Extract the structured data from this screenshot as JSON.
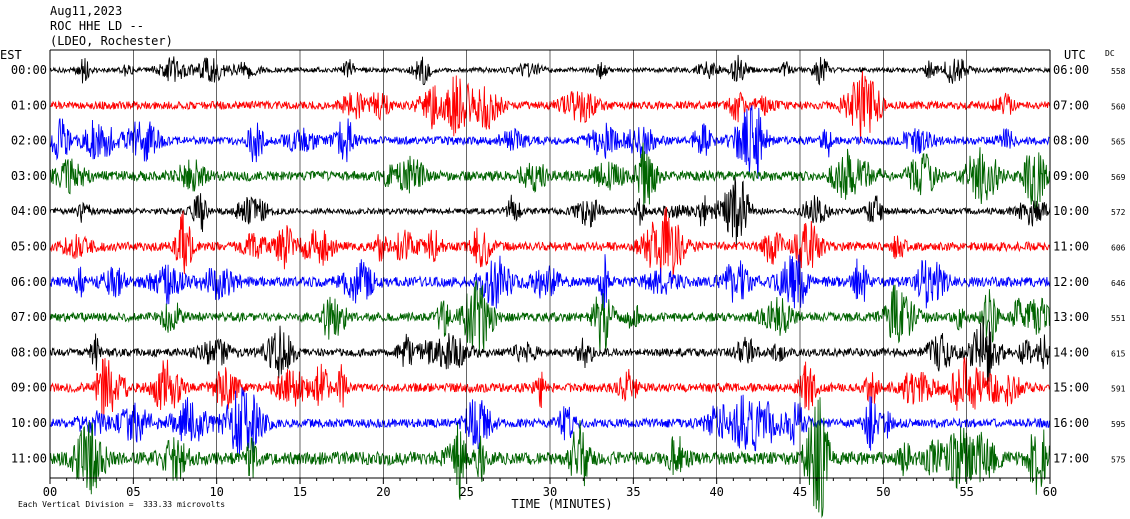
{
  "header": {
    "date": "Aug11,2023",
    "station": "ROC HHE LD --",
    "network": "(LDEO, Rochester)"
  },
  "footer": {
    "scale_text": "Each Vertical Division =  333.33 microvolts"
  },
  "chart_data": {
    "type": "line",
    "title": "",
    "xlabel": "TIME (MINUTES)",
    "ylabel_left": "EST",
    "ylabel_right": "UTC",
    "dc_label": "DC",
    "xlim": [
      0,
      60
    ],
    "x_ticks": [
      0,
      5,
      10,
      15,
      20,
      25,
      30,
      35,
      40,
      45,
      50,
      55,
      60
    ],
    "x_tick_labels": [
      "00",
      "05",
      "10",
      "15",
      "20",
      "25",
      "30",
      "35",
      "40",
      "45",
      "50",
      "55",
      "60"
    ],
    "colors": [
      "#000000",
      "#ff0000",
      "#0000ff",
      "#006400"
    ],
    "traces": [
      {
        "est": "00:00",
        "utc": "06:00",
        "dc": "558",
        "color": "#000000",
        "amplitude_divisions": 0.5
      },
      {
        "est": "01:00",
        "utc": "07:00",
        "dc": "560",
        "color": "#ff0000",
        "amplitude_divisions": 0.8
      },
      {
        "est": "02:00",
        "utc": "08:00",
        "dc": "565",
        "color": "#0000ff",
        "amplitude_divisions": 0.8
      },
      {
        "est": "03:00",
        "utc": "09:00",
        "dc": "569",
        "color": "#006400",
        "amplitude_divisions": 1.0
      },
      {
        "est": "04:00",
        "utc": "10:00",
        "dc": "572",
        "color": "#000000",
        "amplitude_divisions": 0.6
      },
      {
        "est": "05:00",
        "utc": "11:00",
        "dc": "606",
        "color": "#ff0000",
        "amplitude_divisions": 0.9
      },
      {
        "est": "06:00",
        "utc": "12:00",
        "dc": "646",
        "color": "#0000ff",
        "amplitude_divisions": 1.0
      },
      {
        "est": "07:00",
        "utc": "13:00",
        "dc": "551",
        "color": "#006400",
        "amplitude_divisions": 0.9
      },
      {
        "est": "08:00",
        "utc": "14:00",
        "dc": "615",
        "color": "#000000",
        "amplitude_divisions": 0.8
      },
      {
        "est": "09:00",
        "utc": "15:00",
        "dc": "591",
        "color": "#ff0000",
        "amplitude_divisions": 0.9
      },
      {
        "est": "10:00",
        "utc": "16:00",
        "dc": "595",
        "color": "#0000ff",
        "amplitude_divisions": 0.9
      },
      {
        "est": "11:00",
        "utc": "17:00",
        "dc": "575",
        "color": "#006400",
        "amplitude_divisions": 1.3
      }
    ]
  }
}
